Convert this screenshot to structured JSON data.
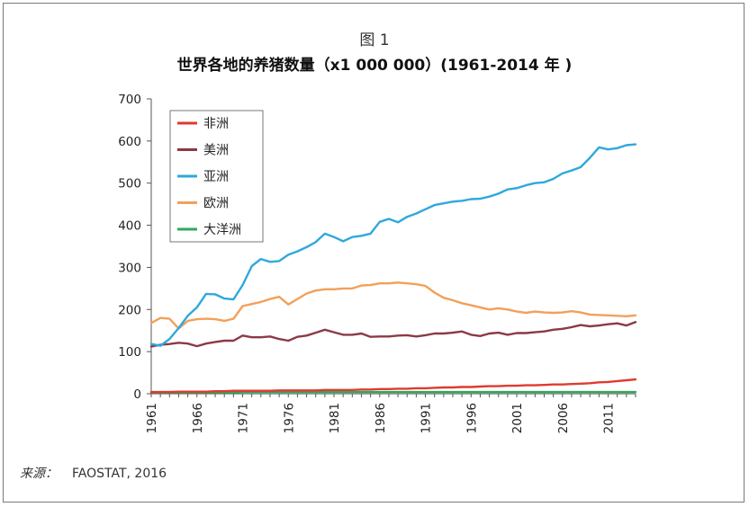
{
  "figure_label": "图 1",
  "title": "世界各地的养猪数量（x1 000 000）(1961-2014 年 )",
  "source": {
    "label": "来源：",
    "value": "FAOSTAT, 2016"
  },
  "chart_data": {
    "type": "line",
    "title": "世界各地的养猪数量（x1 000 000）(1961-2014 年 )",
    "xlabel": "",
    "ylabel": "",
    "ylim": [
      0,
      700
    ],
    "yticks": [
      "0",
      "100",
      "200",
      "300",
      "400",
      "500",
      "600",
      "700"
    ],
    "xticks": [
      "1961",
      "1966",
      "1971",
      "1976",
      "1981",
      "1986",
      "1991",
      "1996",
      "2001",
      "2006",
      "2011"
    ],
    "x": [
      1961,
      1962,
      1963,
      1964,
      1965,
      1966,
      1967,
      1968,
      1969,
      1970,
      1971,
      1972,
      1973,
      1974,
      1975,
      1976,
      1977,
      1978,
      1979,
      1980,
      1981,
      1982,
      1983,
      1984,
      1985,
      1986,
      1987,
      1988,
      1989,
      1990,
      1991,
      1992,
      1993,
      1994,
      1995,
      1996,
      1997,
      1998,
      1999,
      2000,
      2001,
      2002,
      2003,
      2004,
      2005,
      2006,
      2007,
      2008,
      2009,
      2010,
      2011,
      2012,
      2013,
      2014
    ],
    "grid": false,
    "legend": "top-left",
    "series": [
      {
        "name": "非洲",
        "color": "#e03a2f",
        "values": [
          4,
          4,
          4,
          5,
          5,
          5,
          5,
          6,
          6,
          7,
          7,
          7,
          7,
          7,
          8,
          8,
          8,
          8,
          8,
          9,
          9,
          9,
          9,
          10,
          10,
          11,
          11,
          12,
          12,
          13,
          13,
          14,
          15,
          15,
          16,
          16,
          17,
          18,
          18,
          19,
          19,
          20,
          20,
          21,
          22,
          22,
          23,
          24,
          25,
          27,
          28,
          30,
          32,
          34
        ]
      },
      {
        "name": "美洲",
        "color": "#8b3a45",
        "values": [
          112,
          116,
          118,
          121,
          119,
          113,
          119,
          123,
          126,
          126,
          138,
          134,
          134,
          136,
          130,
          126,
          135,
          138,
          145,
          152,
          146,
          140,
          140,
          143,
          135,
          136,
          136,
          138,
          139,
          136,
          139,
          143,
          143,
          145,
          148,
          140,
          137,
          143,
          145,
          140,
          144,
          144,
          146,
          148,
          152,
          154,
          158,
          163,
          160,
          162,
          165,
          167,
          162,
          170
        ]
      },
      {
        "name": "亚洲",
        "color": "#2fa8dd",
        "values": [
          118,
          114,
          130,
          156,
          185,
          205,
          237,
          236,
          226,
          224,
          258,
          303,
          320,
          313,
          315,
          330,
          338,
          348,
          360,
          380,
          372,
          362,
          372,
          375,
          380,
          408,
          415,
          407,
          420,
          428,
          438,
          448,
          452,
          456,
          458,
          462,
          463,
          468,
          475,
          485,
          488,
          495,
          500,
          502,
          510,
          523,
          530,
          538,
          560,
          585,
          580,
          583,
          590,
          592
        ]
      },
      {
        "name": "欧洲",
        "color": "#f2a05a",
        "values": [
          168,
          180,
          178,
          155,
          173,
          177,
          178,
          177,
          173,
          178,
          208,
          213,
          218,
          225,
          230,
          212,
          225,
          238,
          245,
          248,
          248,
          250,
          250,
          257,
          258,
          262,
          262,
          264,
          262,
          260,
          256,
          240,
          228,
          222,
          215,
          210,
          205,
          200,
          203,
          200,
          195,
          192,
          195,
          193,
          192,
          193,
          196,
          193,
          188,
          187,
          186,
          185,
          184,
          186
        ]
      },
      {
        "name": "大洋洲",
        "color": "#2faa58",
        "values": [
          3,
          3,
          3,
          3,
          3,
          3,
          3,
          3,
          3,
          3,
          4,
          4,
          4,
          4,
          4,
          4,
          4,
          4,
          4,
          4,
          4,
          4,
          4,
          4,
          4,
          4,
          4,
          4,
          4,
          4,
          4,
          4,
          4,
          4,
          4,
          4,
          4,
          4,
          4,
          4,
          4,
          4,
          4,
          4,
          4,
          4,
          4,
          4,
          4,
          4,
          4,
          4,
          4,
          4
        ]
      }
    ]
  }
}
